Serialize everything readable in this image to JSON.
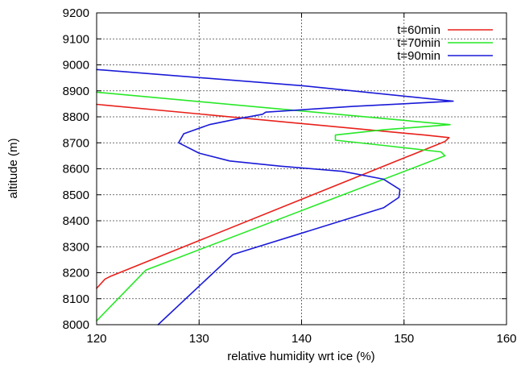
{
  "chart_data": {
    "type": "line",
    "xlabel": "relative humidity wrt ice (%)",
    "ylabel": "altitude (m)",
    "xlim": [
      120,
      160
    ],
    "ylim": [
      8000,
      9200
    ],
    "xticks": [
      "120",
      "130",
      "140",
      "150",
      "160"
    ],
    "yticks": [
      "8000",
      "8100",
      "8200",
      "8300",
      "8400",
      "8500",
      "8600",
      "8700",
      "8800",
      "8900",
      "9000",
      "9100",
      "9200"
    ],
    "grid": true,
    "legend_position": "top-right",
    "series": [
      {
        "name": "t=60min",
        "color": "#e8201a",
        "points": [
          [
            120,
            8140
          ],
          [
            120.8,
            8175
          ],
          [
            121.3,
            8185
          ],
          [
            154.0,
            8705
          ],
          [
            154.4,
            8720
          ],
          [
            152.0,
            8730
          ],
          [
            120,
            8848
          ]
        ]
      },
      {
        "name": "t=70min",
        "color": "#26e826",
        "points": [
          [
            120,
            8015
          ],
          [
            124.8,
            8210
          ],
          [
            154.0,
            8650
          ],
          [
            153.6,
            8665
          ],
          [
            148.0,
            8690
          ],
          [
            143.3,
            8710
          ],
          [
            143.3,
            8730
          ],
          [
            148.0,
            8750
          ],
          [
            154.5,
            8770
          ],
          [
            120,
            8895
          ]
        ]
      },
      {
        "name": "t=90min",
        "color": "#1a1ad8",
        "points": [
          [
            126.0,
            8000
          ],
          [
            133.3,
            8270
          ],
          [
            148.0,
            8450
          ],
          [
            149.5,
            8490
          ],
          [
            149.6,
            8520
          ],
          [
            148.0,
            8560
          ],
          [
            144.0,
            8590
          ],
          [
            138.0,
            8610
          ],
          [
            133.0,
            8630
          ],
          [
            130.0,
            8660
          ],
          [
            128.0,
            8700
          ],
          [
            128.5,
            8735
          ],
          [
            131.0,
            8770
          ],
          [
            133.5,
            8790
          ],
          [
            136.2,
            8810
          ],
          [
            136.5,
            8818
          ],
          [
            145.0,
            8840
          ],
          [
            154.8,
            8860
          ],
          [
            140.0,
            8920
          ],
          [
            120,
            8982
          ]
        ]
      }
    ]
  }
}
